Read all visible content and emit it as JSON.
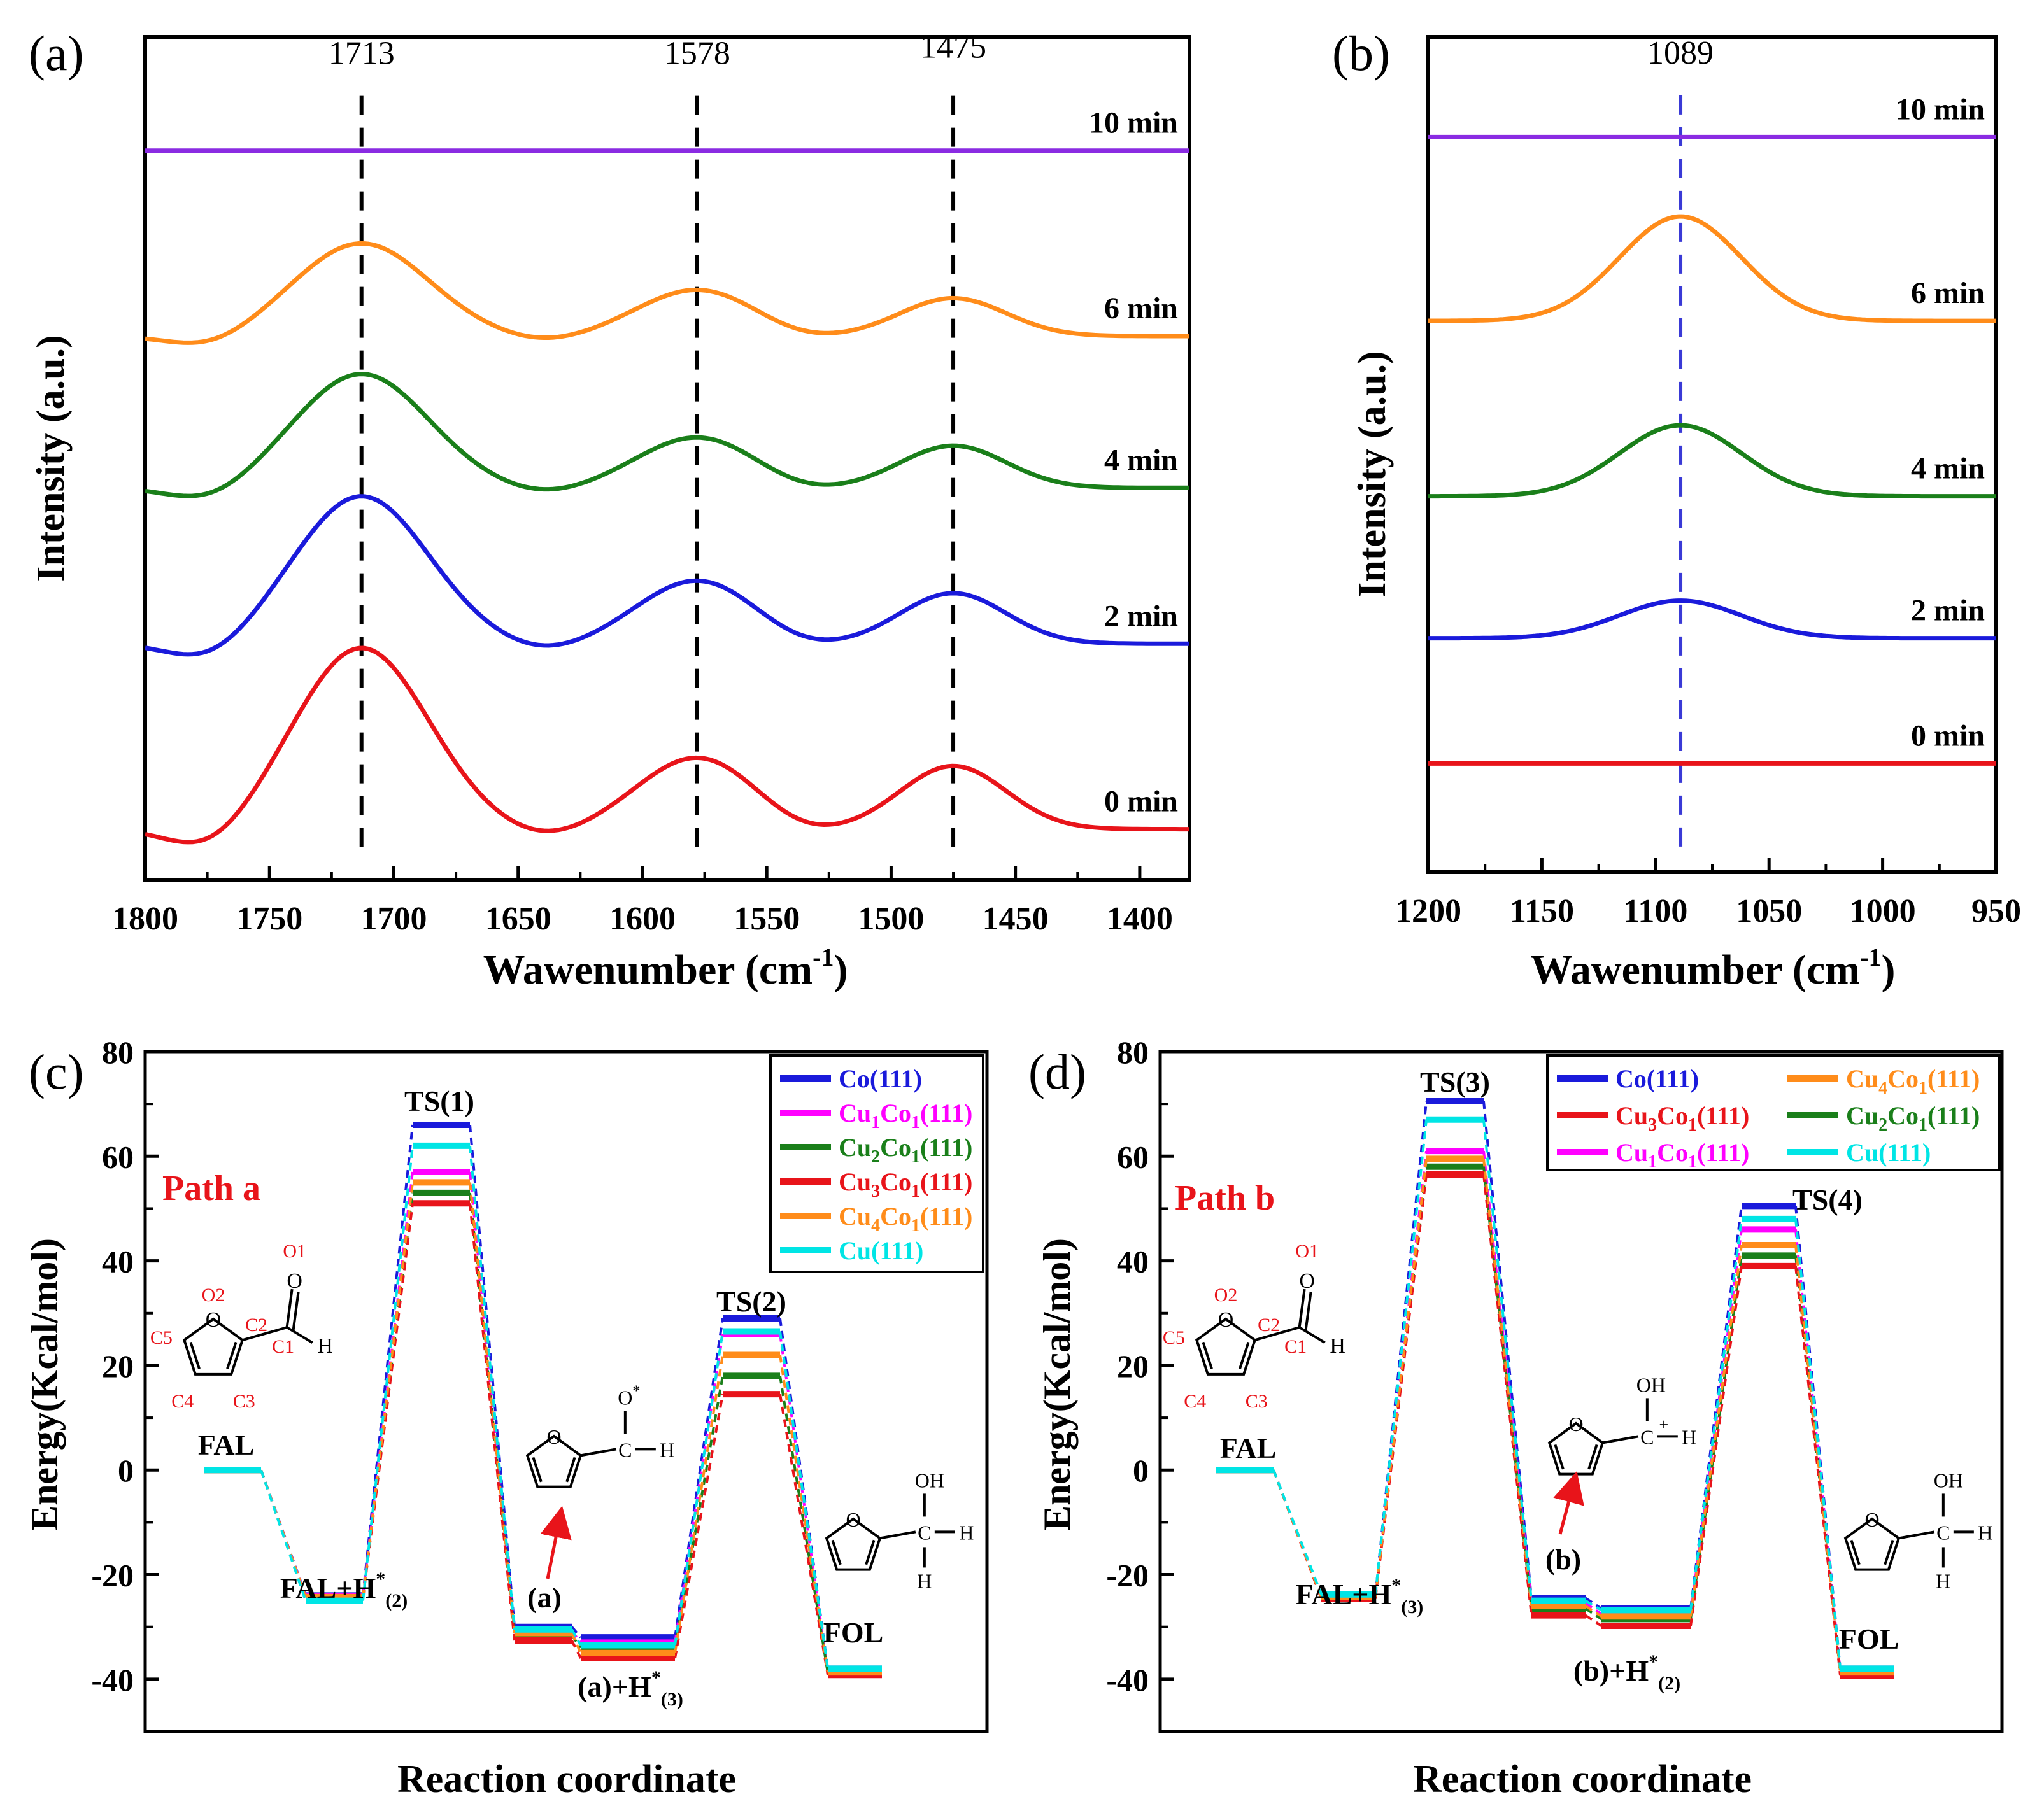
{
  "figure": {
    "panel_labels": [
      "(a)",
      "(b)",
      "(c)",
      "(d)"
    ]
  },
  "chart_data": [
    {
      "type": "line",
      "panel": "(a)",
      "xlabel_main": "Wawenumber (cm",
      "xlabel_sup": "-1",
      "xlabel_close": ")",
      "ylabel": "Intensity (a.u.)",
      "xlim": [
        1800,
        1380
      ],
      "x_ticks": [
        1800,
        1750,
        1700,
        1650,
        1600,
        1550,
        1500,
        1450,
        1400
      ],
      "ylim": [
        0,
        1
      ],
      "peak_markers": [
        {
          "x": 1713,
          "label": "1713"
        },
        {
          "x": 1578,
          "label": "1578"
        },
        {
          "x": 1475,
          "label": "1475"
        }
      ],
      "series": [
        {
          "name": "10 min",
          "color": "#8a2be2",
          "baseline": 0.865,
          "peaks": [
            {
              "x": 1713,
              "h": 0.0
            },
            {
              "x": 1578,
              "h": 0.0
            },
            {
              "x": 1475,
              "h": 0.0
            }
          ]
        },
        {
          "name": "6 min",
          "color": "#ff8c1a",
          "baseline": 0.645,
          "peaks": [
            {
              "x": 1713,
              "h": 0.11
            },
            {
              "x": 1578,
              "h": 0.055
            },
            {
              "x": 1475,
              "h": 0.045
            }
          ]
        },
        {
          "name": "4 min",
          "color": "#1a7f1a",
          "baseline": 0.465,
          "peaks": [
            {
              "x": 1713,
              "h": 0.135
            },
            {
              "x": 1578,
              "h": 0.06
            },
            {
              "x": 1475,
              "h": 0.05
            }
          ]
        },
        {
          "name": "2 min",
          "color": "#1a1adb",
          "baseline": 0.28,
          "peaks": [
            {
              "x": 1713,
              "h": 0.175
            },
            {
              "x": 1578,
              "h": 0.075
            },
            {
              "x": 1475,
              "h": 0.06
            }
          ]
        },
        {
          "name": "0 min",
          "color": "#e8141a",
          "baseline": 0.06,
          "peaks": [
            {
              "x": 1713,
              "h": 0.215
            },
            {
              "x": 1578,
              "h": 0.085
            },
            {
              "x": 1475,
              "h": 0.075
            }
          ]
        }
      ]
    },
    {
      "type": "line",
      "panel": "(b)",
      "xlabel_main": "Wawenumber (cm",
      "xlabel_sup": "-1",
      "xlabel_close": ")",
      "ylabel": "Intensity (a.u.)",
      "xlim": [
        1200,
        950
      ],
      "x_ticks": [
        1200,
        1150,
        1100,
        1050,
        1000,
        950
      ],
      "ylim": [
        0,
        1
      ],
      "peak_markers": [
        {
          "x": 1089,
          "label": "1089"
        }
      ],
      "series": [
        {
          "name": "10 min",
          "color": "#8a2be2",
          "baseline": 0.88,
          "peaks": [
            {
              "x": 1089,
              "h": 0.0
            }
          ]
        },
        {
          "name": "6 min",
          "color": "#ff8c1a",
          "baseline": 0.66,
          "peaks": [
            {
              "x": 1089,
              "h": 0.125
            }
          ]
        },
        {
          "name": "4 min",
          "color": "#1a7f1a",
          "baseline": 0.45,
          "peaks": [
            {
              "x": 1089,
              "h": 0.085
            }
          ]
        },
        {
          "name": "2 min",
          "color": "#1a1adb",
          "baseline": 0.28,
          "peaks": [
            {
              "x": 1089,
              "h": 0.045
            }
          ]
        },
        {
          "name": "0 min",
          "color": "#e8141a",
          "baseline": 0.13,
          "peaks": [
            {
              "x": 1089,
              "h": 0.0
            }
          ]
        }
      ]
    },
    {
      "type": "energy-profile",
      "panel": "(c)",
      "path_label": "Path a",
      "xlabel": "Reaction coordinate",
      "ylabel": "Energy(Kcal/mol)",
      "ylim": [
        -50,
        80
      ],
      "y_ticks": [
        -40,
        -20,
        0,
        20,
        40,
        60,
        80
      ],
      "legend_rows": [
        {
          "base": "Co",
          "sub": "",
          "mid": "",
          "sub2": "",
          "tail": "(111)",
          "color": "#1a1adb"
        },
        {
          "base": "Cu",
          "sub": "1",
          "mid": "Co",
          "sub2": "1",
          "tail": "(111)",
          "color": "#ff00ff"
        },
        {
          "base": "Cu",
          "sub": "2",
          "mid": "Co",
          "sub2": "1",
          "tail": "(111)",
          "color": "#1a7f1a"
        },
        {
          "base": "Cu",
          "sub": "3",
          "mid": "Co",
          "sub2": "1",
          "tail": "(111)",
          "color": "#e8141a"
        },
        {
          "base": "Cu",
          "sub": "4",
          "mid": "Co",
          "sub2": "1",
          "tail": "(111)",
          "color": "#ff8c1a"
        },
        {
          "base": "Cu",
          "sub": "",
          "mid": "",
          "sub2": "",
          "tail": "(111)",
          "color": "#00e5e5"
        }
      ],
      "state_labels": [
        "FAL",
        "FAL+H",
        "TS(1)",
        "(a)",
        "(a)+H",
        "TS(2)",
        "FOL"
      ],
      "h_sup": "*",
      "state_subs": {
        "FAL+H": "(2)",
        "(a)+H": "(3)"
      },
      "intermediate_atoms": {
        "o_plus": "O",
        "c": "C",
        "h": "H"
      },
      "fal_atoms": {
        "o1": "O1",
        "o2": "O2",
        "c1": "C1",
        "c2": "C2",
        "c3": "C3",
        "c4": "C4",
        "c5": "C5",
        "h": "H",
        "o_ring": "O",
        "o_carbonyl": "O"
      },
      "fol_atoms": {
        "oh": "OH",
        "c": "C",
        "h": "H"
      },
      "surfaces": [
        "Co(111)",
        "Cu1Co1(111)",
        "Cu2Co1(111)",
        "Cu3Co1(111)",
        "Cu4Co1(111)",
        "Cu(111)"
      ],
      "energies": {
        "Co(111)": [
          0,
          -24.0,
          66.0,
          -30.0,
          -32.0,
          29.0,
          -38.0
        ],
        "Cu1Co1(111)": [
          0,
          -24.2,
          57.0,
          -30.8,
          -33.0,
          26.0,
          -38.5
        ],
        "Cu2Co1(111)": [
          0,
          -24.4,
          53.0,
          -31.6,
          -34.0,
          18.0,
          -38.8
        ],
        "Cu3Co1(111)": [
          0,
          -24.6,
          51.0,
          -32.6,
          -36.0,
          14.5,
          -39.2
        ],
        "Cu4Co1(111)": [
          0,
          -24.3,
          55.0,
          -31.2,
          -35.0,
          22.0,
          -38.7
        ],
        "Cu(111)": [
          0,
          -25.0,
          62.0,
          -30.5,
          -33.5,
          26.5,
          -38.0
        ]
      }
    },
    {
      "type": "energy-profile",
      "panel": "(d)",
      "path_label": "Path b",
      "xlabel": "Reaction coordinate",
      "ylabel": "Energy(Kcal/mol)",
      "ylim": [
        -50,
        80
      ],
      "y_ticks": [
        -40,
        -20,
        0,
        20,
        40,
        60,
        80
      ],
      "legend_rows": [
        {
          "base": "Co",
          "sub": "",
          "mid": "",
          "sub2": "",
          "tail": "(111)",
          "color": "#1a1adb"
        },
        {
          "base": "Cu",
          "sub": "3",
          "mid": "Co",
          "sub2": "1",
          "tail": "(111)",
          "color": "#e8141a"
        },
        {
          "base": "Cu",
          "sub": "1",
          "mid": "Co",
          "sub2": "1",
          "tail": "(111)",
          "color": "#ff00ff"
        },
        {
          "base": "Cu",
          "sub": "4",
          "mid": "Co",
          "sub2": "1",
          "tail": "(111)",
          "color": "#ff8c1a"
        },
        {
          "base": "Cu",
          "sub": "2",
          "mid": "Co",
          "sub2": "1",
          "tail": "(111)",
          "color": "#1a7f1a"
        },
        {
          "base": "Cu",
          "sub": "",
          "mid": "",
          "sub2": "",
          "tail": "(111)",
          "color": "#00e5e5"
        }
      ],
      "state_labels": [
        "FAL",
        "FAL+H",
        "TS(3)",
        "(b)",
        "(b)+H",
        "TS(4)",
        "FOL"
      ],
      "h_sup": "*",
      "state_subs": {
        "FAL+H": "(3)",
        "(b)+H": "(2)"
      },
      "intermediate_atoms": {
        "oh": "OH",
        "c": "C",
        "h": "H",
        "plus": "+"
      },
      "fal_atoms": {
        "o1": "O1",
        "o2": "O2",
        "c1": "C1",
        "c2": "C2",
        "c3": "C3",
        "c4": "C4",
        "c5": "C5",
        "h": "H",
        "o_ring": "O",
        "o_carbonyl": "O"
      },
      "fol_atoms": {
        "oh": "OH",
        "c": "C",
        "h": "H"
      },
      "surfaces": [
        "Co(111)",
        "Cu1Co1(111)",
        "Cu2Co1(111)",
        "Cu3Co1(111)",
        "Cu4Co1(111)",
        "Cu(111)"
      ],
      "energies": {
        "Co(111)": [
          0,
          -24.0,
          70.5,
          -24.5,
          -26.5,
          50.5,
          -38.0
        ],
        "Cu1Co1(111)": [
          0,
          -24.2,
          61.0,
          -25.5,
          -27.5,
          46.0,
          -38.5
        ],
        "Cu2Co1(111)": [
          0,
          -24.4,
          58.0,
          -26.5,
          -28.5,
          41.0,
          -38.8
        ],
        "Cu3Co1(111)": [
          0,
          -24.6,
          56.5,
          -27.8,
          -29.8,
          39.0,
          -39.3
        ],
        "Cu4Co1(111)": [
          0,
          -24.3,
          59.5,
          -26.0,
          -28.0,
          43.0,
          -38.7
        ],
        "Cu(111)": [
          0,
          -23.8,
          67.0,
          -25.0,
          -26.8,
          48.0,
          -38.0
        ]
      }
    }
  ]
}
